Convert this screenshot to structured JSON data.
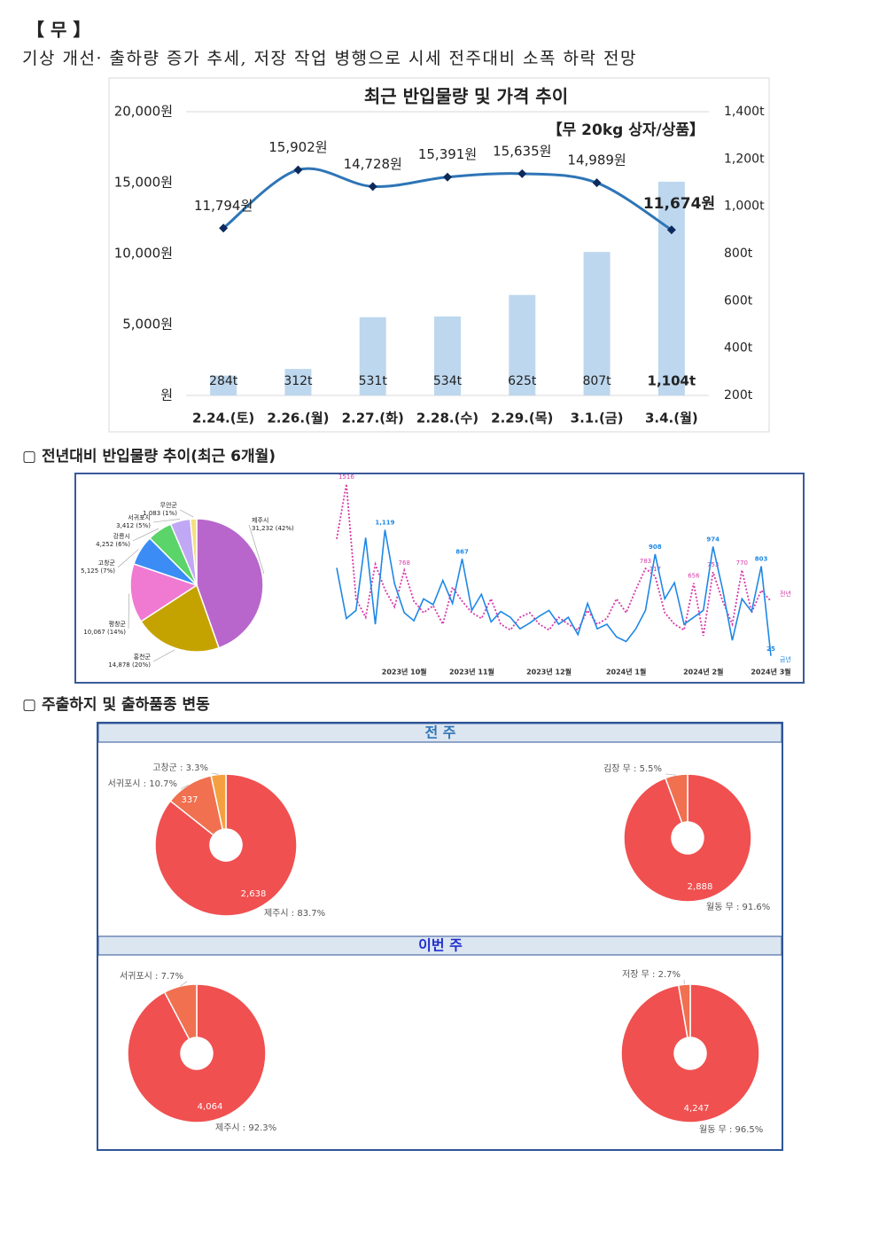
{
  "header": {
    "title": "【 무 】",
    "summary": "기상 개선· 출하량 증가 추세, 저장 작업 병행으로 시세 전주대비 소폭 하락 전망"
  },
  "price_chart": {
    "type": "bar_line",
    "title": "최근 반입물량 및 가격 추이",
    "annotation": "【무 20kg 상자/상품】",
    "categories": [
      "2.24.(토)",
      "2.26.(월)",
      "2.27.(화)",
      "2.28.(수)",
      "2.29.(목)",
      "3.1.(금)",
      "3.4.(월)"
    ],
    "bars": {
      "axis": "y2",
      "color": "#bdd7ee",
      "values": [
        284,
        312,
        531,
        534,
        625,
        807,
        1104
      ],
      "value_labels": [
        "284t",
        "312t",
        "531t",
        "534t",
        "625t",
        "807t",
        "1,104t"
      ]
    },
    "line": {
      "color": "#2e75b6",
      "marker_color": "#0d2a5c",
      "values": [
        11794,
        15902,
        14728,
        15391,
        15635,
        14989,
        11674
      ],
      "value_labels": [
        "11,794원",
        "15,902원",
        "14,728원",
        "15,391원",
        "15,635원",
        "14,989원",
        "11,674원"
      ]
    },
    "ylim": [
      0,
      20000
    ],
    "yticks": [
      {
        "value": 0,
        "label": "원"
      },
      {
        "value": 5000,
        "label": "5,000원"
      },
      {
        "value": 10000,
        "label": "10,000원"
      },
      {
        "value": 15000,
        "label": "15,000원"
      },
      {
        "value": 20000,
        "label": "20,000원"
      }
    ],
    "y2lim": [
      200,
      1400
    ],
    "y2ticks": [
      {
        "value": 200,
        "label": "200t"
      },
      {
        "value": 400,
        "label": "400t"
      },
      {
        "value": 600,
        "label": "600t"
      },
      {
        "value": 800,
        "label": "800t"
      },
      {
        "value": 1000,
        "label": "1,000t"
      },
      {
        "value": 1200,
        "label": "1,200t"
      },
      {
        "value": 1400,
        "label": "1,400t"
      }
    ]
  },
  "section_yoy": {
    "heading": "▢ 전년대비 반입물량 추이(최근 6개월)",
    "origin_pie": {
      "type": "pie",
      "names": [
        "제주시",
        "홍천군",
        "평창군",
        "고창군",
        "강릉시",
        "서귀포시",
        "무안군"
      ],
      "values": [
        31232,
        14878,
        10067,
        5125,
        4252,
        3412,
        1083
      ],
      "value_labels": [
        "31,232 (42%)",
        "14,878 (20%)",
        "10,067 (14%)",
        "5,125 (7%)",
        "4,252 (6%)",
        "3,412 (5%)",
        "1,083 (1%)"
      ],
      "colors": [
        "#b866cc",
        "#c4a300",
        "#f07ad2",
        "#3b8df5",
        "#5bd46a",
        "#c0a8f5",
        "#f5e080"
      ]
    },
    "trend": {
      "type": "line",
      "ylim": [
        0,
        1600
      ],
      "categories": [
        null,
        null,
        null,
        null,
        null,
        null,
        null,
        "2023년 10월",
        null,
        null,
        null,
        null,
        null,
        null,
        "2023년 11월",
        null,
        null,
        null,
        null,
        null,
        null,
        null,
        "2023년 12월",
        null,
        null,
        null,
        null,
        null,
        null,
        null,
        "2024년 1월",
        null,
        null,
        null,
        null,
        null,
        null,
        null,
        "2024년 2월",
        null,
        null,
        null,
        null,
        null,
        null,
        "2024년 3월"
      ],
      "series": [
        {
          "name": "전년",
          "color": "#d63aa8",
          "dashed": true,
          "values": [
            1040,
            1516,
            520,
            360,
            820,
            600,
            450,
            768,
            500,
            400,
            460,
            300,
            620,
            500,
            400,
            350,
            520,
            300,
            250,
            360,
            400,
            300,
            250,
            360,
            300,
            250,
            420,
            300,
            350,
            520,
            400,
            600,
            783,
            717,
            400,
            300,
            250,
            656,
            200,
            753,
            500,
            300,
            770,
            400,
            594,
            500
          ],
          "value_labels": [
            null,
            "1516",
            null,
            null,
            null,
            null,
            null,
            "768",
            null,
            null,
            null,
            null,
            null,
            null,
            null,
            null,
            null,
            null,
            null,
            null,
            null,
            null,
            null,
            null,
            null,
            null,
            null,
            null,
            null,
            null,
            null,
            null,
            "783",
            "717",
            null,
            null,
            null,
            "656",
            null,
            "753",
            null,
            null,
            "770",
            null,
            null,
            null
          ]
        },
        {
          "name": "금년",
          "color": "#1e88e5",
          "dashed": false,
          "values": [
            789,
            350,
            420,
            1050,
            300,
            1119,
            650,
            400,
            330,
            520,
            470,
            680,
            480,
            867,
            420,
            560,
            320,
            410,
            360,
            260,
            310,
            370,
            420,
            300,
            360,
            210,
            480,
            260,
            300,
            190,
            150,
            260,
            420,
            908,
            520,
            660,
            300,
            360,
            420,
            974,
            600,
            160,
            520,
            410,
            803,
            25
          ],
          "value_labels": [
            null,
            null,
            null,
            null,
            null,
            "1,119",
            null,
            null,
            null,
            null,
            null,
            null,
            null,
            "867",
            null,
            null,
            null,
            null,
            null,
            null,
            null,
            null,
            null,
            null,
            null,
            null,
            null,
            null,
            null,
            null,
            null,
            null,
            null,
            "908",
            null,
            null,
            null,
            null,
            null,
            "974",
            null,
            null,
            null,
            null,
            "803",
            "25"
          ]
        }
      ]
    }
  },
  "section_shipping": {
    "heading": "▢ 주출하지 및 출하품종 변동",
    "rows": [
      {
        "label": "전 주",
        "donuts": [
          {
            "type": "donut",
            "names": [
              "제주시",
              "서귀포시",
              "고창군"
            ],
            "values": [
              83.7,
              10.7,
              3.3
            ],
            "value_labels": [
              "83.7%",
              "10.7%",
              "3.3%"
            ],
            "count_labels": [
              "2,638",
              "337",
              null
            ],
            "colors": [
              "#f05050",
              "#f07050",
              "#f5a040"
            ]
          },
          {
            "type": "donut",
            "names": [
              "월동 무",
              "김장 무"
            ],
            "values": [
              91.6,
              5.5
            ],
            "value_labels": [
              "91.6%",
              "5.5%"
            ],
            "count_labels": [
              "2,888",
              null
            ],
            "colors": [
              "#f05050",
              "#f07050"
            ]
          }
        ]
      },
      {
        "label": "이번 주",
        "donuts": [
          {
            "type": "donut",
            "names": [
              "제주시",
              "서귀포시"
            ],
            "values": [
              92.3,
              7.7
            ],
            "value_labels": [
              "92.3%",
              "7.7%"
            ],
            "count_labels": [
              "4,064",
              null
            ],
            "colors": [
              "#f05050",
              "#f07050"
            ]
          },
          {
            "type": "donut",
            "names": [
              "월동 무",
              "저장 무"
            ],
            "values": [
              96.5,
              2.7
            ],
            "value_labels": [
              "96.5%",
              "2.7%"
            ],
            "count_labels": [
              "4,247",
              null
            ],
            "colors": [
              "#f05050",
              "#f07050"
            ]
          }
        ]
      }
    ]
  }
}
